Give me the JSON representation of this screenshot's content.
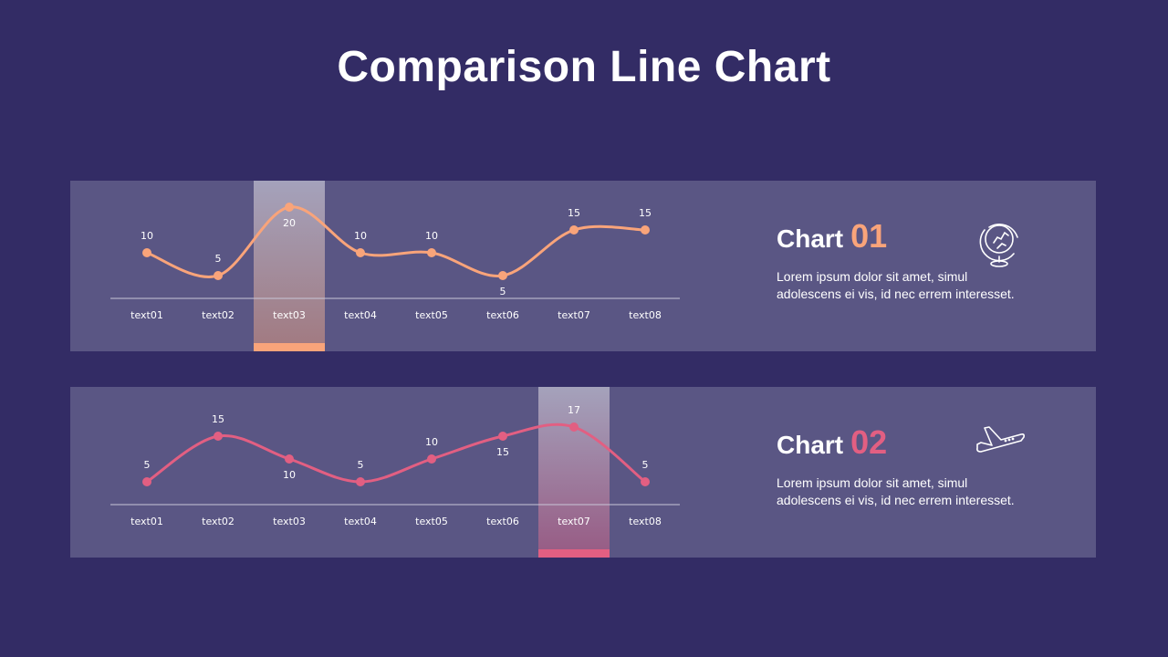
{
  "page": {
    "title": "Comparison Line Chart"
  },
  "colors": {
    "background": "#332c65",
    "panel": "#5a5684",
    "series1": "#f9a47a",
    "series2": "#e25f82",
    "axis": "#c8c6d8"
  },
  "panels": [
    {
      "heading": "Chart",
      "number": "01",
      "description_line1": "Lorem  ipsum dolor  sit amet,  simul",
      "description_line2": "adolescens ei vis, id nec errem  interesset.",
      "icon": "globe-icon",
      "highlight_index": 2
    },
    {
      "heading": "Chart",
      "number": "02",
      "description_line1": "Lorem  ipsum dolor  sit amet,  simul",
      "description_line2": "adolescens ei vis, id nec errem  interesset.",
      "icon": "airplane-icon",
      "highlight_index": 6
    }
  ],
  "chart_data": [
    {
      "type": "line",
      "title": "Chart 01",
      "categories": [
        "text01",
        "text02",
        "text03",
        "text04",
        "text05",
        "text06",
        "text07",
        "text08"
      ],
      "series": [
        {
          "name": "Chart 01",
          "values": [
            10,
            5,
            20,
            10,
            10,
            5,
            15,
            15
          ],
          "color": "#f9a47a"
        }
      ],
      "highlight_category": "text03",
      "smooth": true,
      "grid": false,
      "data_labels": true
    },
    {
      "type": "line",
      "title": "Chart 02",
      "categories": [
        "text01",
        "text02",
        "text03",
        "text04",
        "text05",
        "text06",
        "text07",
        "text08"
      ],
      "series": [
        {
          "name": "Chart 02",
          "values": [
            5,
            15,
            10,
            5,
            10,
            15,
            17,
            5
          ],
          "color": "#e25f82"
        }
      ],
      "highlight_category": "text07",
      "smooth": true,
      "grid": false,
      "data_labels": true
    }
  ]
}
